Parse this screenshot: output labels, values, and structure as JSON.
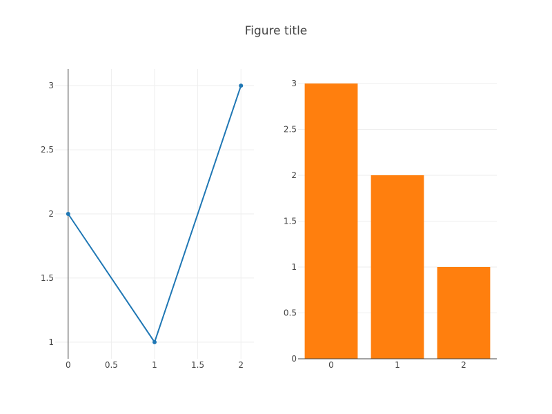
{
  "figure": {
    "title": "Figure title"
  },
  "chart_data": [
    {
      "type": "line",
      "x": [
        0,
        1,
        2
      ],
      "series": [
        {
          "values": [
            2,
            1,
            3
          ],
          "color": "#1f77b4"
        }
      ],
      "xlim": [
        -0.15,
        2.15
      ],
      "ylim": [
        0.87,
        3.13
      ],
      "xticks": [
        0,
        0.5,
        1,
        1.5,
        2
      ],
      "xtick_labels": [
        "0",
        "0.5",
        "1",
        "1.5",
        "2"
      ],
      "yticks": [
        1,
        1.5,
        2,
        2.5,
        3
      ],
      "ytick_labels": [
        "1",
        "1.5",
        "2",
        "2.5",
        "3"
      ],
      "markers": true,
      "grid": true,
      "y_axis_line_at_x": 0
    },
    {
      "type": "bar",
      "categories": [
        "0",
        "1",
        "2"
      ],
      "series": [
        {
          "values": [
            3,
            2,
            1
          ],
          "color": "#ff7f0e"
        }
      ],
      "ylim": [
        0,
        3
      ],
      "yticks": [
        0,
        0.5,
        1,
        1.5,
        2,
        2.5,
        3
      ],
      "ytick_labels": [
        "0",
        "0.5",
        "1",
        "1.5",
        "2",
        "2.5",
        "3"
      ],
      "grid": true
    }
  ]
}
